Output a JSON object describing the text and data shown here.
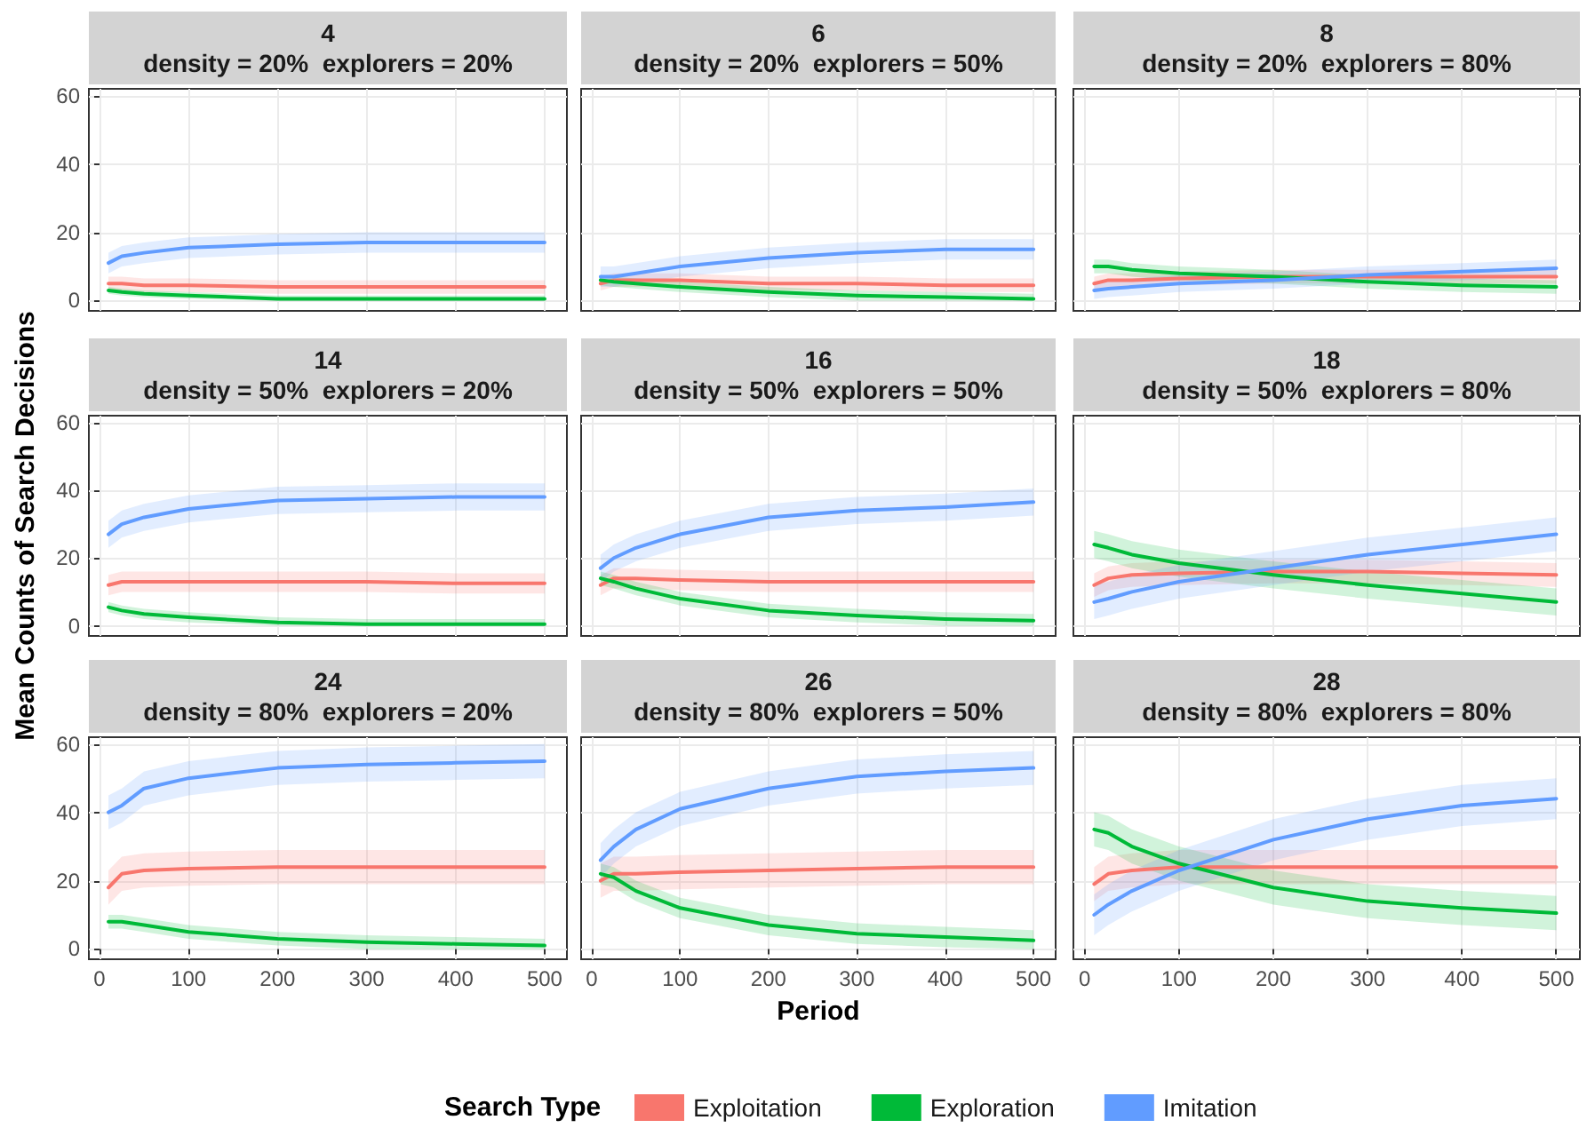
{
  "chart_data": [
    {
      "type": "line",
      "title": "4\ndensity = 20%  explorers = 20%",
      "legend_title": "Search Type",
      "legend": "bottom",
      "x": [
        10,
        25,
        50,
        100,
        200,
        300,
        400,
        500
      ],
      "xlim": [
        -12,
        525
      ],
      "xticks": [
        0,
        100,
        200,
        300,
        400,
        500
      ],
      "ylim": [
        -3,
        62
      ],
      "yticks": [
        0,
        20,
        40,
        60
      ],
      "grid": true,
      "tick_labels": "y",
      "series": [
        {
          "name": "Exploitation",
          "color": "#f8766d",
          "values": [
            5,
            5,
            4.5,
            4.5,
            4,
            4,
            4,
            4
          ],
          "lower": [
            3,
            3,
            2.5,
            2.5,
            2,
            2,
            2,
            2
          ],
          "upper": [
            7,
            7,
            6.5,
            6.5,
            6,
            6,
            6,
            6
          ]
        },
        {
          "name": "Exploration",
          "color": "#00ba38",
          "values": [
            3,
            2.5,
            2,
            1.5,
            0.5,
            0.5,
            0.5,
            0.5
          ],
          "lower": [
            2,
            1.5,
            1,
            0.5,
            0,
            0,
            0,
            0
          ],
          "upper": [
            4,
            3.5,
            3,
            2.5,
            1.5,
            1.5,
            1.5,
            1.5
          ]
        },
        {
          "name": "Imitation",
          "color": "#619cff",
          "values": [
            11,
            13,
            14,
            15.5,
            16.5,
            17,
            17,
            17
          ],
          "lower": [
            8,
            10,
            11,
            12.5,
            13.5,
            14,
            14,
            14
          ],
          "upper": [
            14,
            16,
            17,
            18.5,
            19.5,
            20,
            20,
            20
          ]
        }
      ]
    },
    {
      "type": "line",
      "title": "6\ndensity = 20%  explorers = 50%",
      "x": [
        10,
        25,
        50,
        100,
        200,
        300,
        400,
        500
      ],
      "xlim": [
        -12,
        525
      ],
      "xticks": [
        0,
        100,
        200,
        300,
        400,
        500
      ],
      "ylim": [
        -3,
        62
      ],
      "yticks": [
        0,
        20,
        40,
        60
      ],
      "grid": true,
      "tick_labels": false,
      "series": [
        {
          "color": "#f8766d",
          "values": [
            5,
            6,
            6,
            6,
            5,
            5,
            4.5,
            4.5
          ],
          "lower": [
            3,
            4,
            4,
            4,
            3,
            3,
            2.5,
            2.5
          ],
          "upper": [
            7,
            8,
            8,
            8,
            7,
            7,
            6.5,
            6.5
          ]
        },
        {
          "color": "#00ba38",
          "values": [
            6,
            5.5,
            5,
            4,
            2.5,
            1.5,
            1,
            0.5
          ],
          "lower": [
            4.5,
            4,
            3.5,
            2.5,
            1,
            0,
            0,
            0
          ],
          "upper": [
            7.5,
            7,
            6.5,
            5.5,
            4,
            3,
            2.5,
            2
          ]
        },
        {
          "color": "#619cff",
          "values": [
            7,
            7,
            8,
            10,
            12.5,
            14,
            15,
            15
          ],
          "lower": [
            4,
            4,
            5,
            7,
            9.5,
            11,
            12,
            12
          ],
          "upper": [
            10,
            10,
            11,
            13,
            15.5,
            17,
            18,
            18
          ]
        }
      ]
    },
    {
      "type": "line",
      "title": "8\ndensity = 20%  explorers = 80%",
      "x": [
        10,
        25,
        50,
        100,
        200,
        300,
        400,
        500
      ],
      "xlim": [
        -12,
        525
      ],
      "xticks": [
        0,
        100,
        200,
        300,
        400,
        500
      ],
      "ylim": [
        -3,
        62
      ],
      "yticks": [
        0,
        20,
        40,
        60
      ],
      "grid": true,
      "tick_labels": false,
      "series": [
        {
          "color": "#f8766d",
          "values": [
            5,
            6,
            6,
            6.5,
            7,
            7,
            7,
            7
          ],
          "lower": [
            3,
            4,
            4,
            4.5,
            5,
            5,
            5,
            5
          ],
          "upper": [
            7,
            8,
            8,
            8.5,
            9,
            9,
            9,
            9
          ]
        },
        {
          "color": "#00ba38",
          "values": [
            10,
            10,
            9,
            8,
            7,
            5.5,
            4.5,
            4
          ],
          "lower": [
            8,
            8,
            7,
            6,
            5,
            3.5,
            2.5,
            2
          ],
          "upper": [
            12,
            12,
            11,
            10,
            9,
            7.5,
            6.5,
            6
          ]
        },
        {
          "color": "#619cff",
          "values": [
            3,
            3.5,
            4,
            5,
            6,
            7.5,
            8.5,
            9.5
          ],
          "lower": [
            0.5,
            1,
            1.5,
            2.5,
            3.5,
            5,
            6,
            7
          ],
          "upper": [
            5.5,
            6,
            6.5,
            7.5,
            8.5,
            10,
            11,
            12
          ]
        }
      ]
    },
    {
      "type": "line",
      "title": "14\ndensity = 50%  explorers = 20%",
      "ylabel": "Mean Counts of Search Decisions",
      "x": [
        10,
        25,
        50,
        100,
        200,
        300,
        400,
        500
      ],
      "xlim": [
        -12,
        525
      ],
      "xticks": [
        0,
        100,
        200,
        300,
        400,
        500
      ],
      "ylim": [
        -3,
        62
      ],
      "yticks": [
        0,
        20,
        40,
        60
      ],
      "grid": true,
      "tick_labels": "y",
      "series": [
        {
          "color": "#f8766d",
          "values": [
            12,
            13,
            13,
            13,
            13,
            13,
            12.5,
            12.5
          ],
          "lower": [
            9,
            10,
            10,
            10,
            10,
            10,
            9.5,
            9.5
          ],
          "upper": [
            15,
            16,
            16,
            16,
            16,
            16,
            15.5,
            15.5
          ]
        },
        {
          "color": "#00ba38",
          "values": [
            5.5,
            4.5,
            3.5,
            2.5,
            1,
            0.5,
            0.5,
            0.5
          ],
          "lower": [
            4,
            3,
            2,
            1,
            0,
            0,
            0,
            0
          ],
          "upper": [
            7,
            6,
            5,
            4,
            2.5,
            2,
            2,
            2
          ]
        },
        {
          "color": "#619cff",
          "values": [
            27,
            30,
            32,
            34.5,
            37,
            37.5,
            38,
            38
          ],
          "lower": [
            23,
            26,
            28,
            30.5,
            33,
            33.5,
            34,
            34
          ],
          "upper": [
            31,
            34,
            36,
            38.5,
            41,
            41.5,
            42,
            42
          ]
        }
      ]
    },
    {
      "type": "line",
      "title": "16\ndensity = 50%  explorers = 50%",
      "x": [
        10,
        25,
        50,
        100,
        200,
        300,
        400,
        500
      ],
      "xlim": [
        -12,
        525
      ],
      "xticks": [
        0,
        100,
        200,
        300,
        400,
        500
      ],
      "ylim": [
        -3,
        62
      ],
      "yticks": [
        0,
        20,
        40,
        60
      ],
      "grid": true,
      "tick_labels": false,
      "series": [
        {
          "color": "#f8766d",
          "values": [
            12,
            14,
            14,
            13.5,
            13,
            13,
            13,
            13
          ],
          "lower": [
            9,
            11,
            11,
            10.5,
            10,
            10,
            10,
            10
          ],
          "upper": [
            15,
            17,
            17,
            16.5,
            16,
            16,
            16,
            16
          ]
        },
        {
          "color": "#00ba38",
          "values": [
            14,
            13,
            11,
            8,
            4.5,
            3,
            2,
            1.5
          ],
          "lower": [
            12,
            11,
            9,
            6,
            2.5,
            1,
            0,
            0
          ],
          "upper": [
            16,
            15,
            13,
            10,
            6.5,
            5,
            4,
            3.5
          ]
        },
        {
          "color": "#619cff",
          "values": [
            17,
            20,
            23,
            27,
            32,
            34,
            35,
            36.5
          ],
          "lower": [
            13,
            16,
            19,
            23,
            28,
            30,
            31,
            32.5
          ],
          "upper": [
            21,
            24,
            27,
            31,
            36,
            38,
            39,
            40.5
          ]
        }
      ]
    },
    {
      "type": "line",
      "title": "18\ndensity = 50%  explorers = 80%",
      "x": [
        10,
        25,
        50,
        100,
        200,
        300,
        400,
        500
      ],
      "xlim": [
        -12,
        525
      ],
      "xticks": [
        0,
        100,
        200,
        300,
        400,
        500
      ],
      "ylim": [
        -3,
        62
      ],
      "yticks": [
        0,
        20,
        40,
        60
      ],
      "grid": true,
      "tick_labels": false,
      "series": [
        {
          "color": "#f8766d",
          "values": [
            12,
            14,
            15,
            15.5,
            16,
            16,
            15.5,
            15
          ],
          "lower": [
            8.5,
            10.5,
            11.5,
            12,
            12.5,
            12.5,
            12,
            11.5
          ],
          "upper": [
            15.5,
            17.5,
            18.5,
            19,
            19.5,
            19.5,
            19,
            18.5
          ]
        },
        {
          "color": "#00ba38",
          "values": [
            24,
            23,
            21,
            18.5,
            15,
            12,
            9.5,
            7
          ],
          "lower": [
            20,
            19,
            17,
            14.5,
            11,
            8,
            5.5,
            3
          ],
          "upper": [
            28,
            27,
            25,
            22.5,
            19,
            16,
            13.5,
            11
          ]
        },
        {
          "color": "#619cff",
          "values": [
            7,
            8,
            10,
            13,
            17,
            21,
            24,
            27
          ],
          "lower": [
            2,
            3,
            5,
            8,
            12,
            16,
            19,
            22
          ],
          "upper": [
            12,
            13,
            15,
            18,
            22,
            26,
            29,
            32
          ]
        }
      ]
    },
    {
      "type": "line",
      "title": "24\ndensity = 80%  explorers = 20%",
      "x": [
        10,
        25,
        50,
        100,
        200,
        300,
        400,
        500
      ],
      "xlim": [
        -12,
        525
      ],
      "xticks": [
        0,
        100,
        200,
        300,
        400,
        500
      ],
      "ylim": [
        -3,
        62
      ],
      "yticks": [
        0,
        20,
        40,
        60
      ],
      "grid": true,
      "series": [
        {
          "color": "#f8766d",
          "values": [
            18,
            22,
            23,
            23.5,
            24,
            24,
            24,
            24
          ],
          "lower": [
            13,
            17,
            18,
            18.5,
            19,
            19,
            19,
            19
          ],
          "upper": [
            23,
            27,
            28,
            28.5,
            29,
            29,
            29,
            29
          ]
        },
        {
          "color": "#00ba38",
          "values": [
            8,
            8,
            7,
            5,
            3,
            2,
            1.5,
            1
          ],
          "lower": [
            6,
            6,
            5,
            3,
            1,
            0,
            0,
            0
          ],
          "upper": [
            10,
            10,
            9,
            7,
            5,
            4,
            3.5,
            3
          ]
        },
        {
          "color": "#619cff",
          "values": [
            40,
            42,
            47,
            50,
            53,
            54,
            54.5,
            55
          ],
          "lower": [
            35,
            37,
            42,
            45,
            48,
            49,
            49.5,
            50
          ],
          "upper": [
            45,
            47,
            52,
            55,
            58,
            59,
            59.5,
            60
          ]
        }
      ]
    },
    {
      "type": "line",
      "title": "26\ndensity = 80%  explorers = 50%",
      "xlabel": "Period",
      "x": [
        10,
        25,
        50,
        100,
        200,
        300,
        400,
        500
      ],
      "xlim": [
        -12,
        525
      ],
      "xticks": [
        0,
        100,
        200,
        300,
        400,
        500
      ],
      "ylim": [
        -3,
        62
      ],
      "yticks": [
        0,
        20,
        40,
        60
      ],
      "grid": true,
      "tick_labels": "x",
      "series": [
        {
          "color": "#f8766d",
          "values": [
            20,
            22,
            22,
            22.5,
            23,
            23.5,
            24,
            24
          ],
          "lower": [
            15,
            17,
            17,
            17.5,
            18,
            18.5,
            19,
            19
          ],
          "upper": [
            25,
            27,
            27,
            27.5,
            28,
            28.5,
            29,
            29
          ]
        },
        {
          "color": "#00ba38",
          "values": [
            22,
            21,
            17,
            12,
            7,
            4.5,
            3.5,
            2.5
          ],
          "lower": [
            19,
            18,
            14,
            9,
            4,
            1.5,
            0.5,
            0
          ],
          "upper": [
            25,
            24,
            20,
            15,
            10,
            7.5,
            6.5,
            5.5
          ]
        },
        {
          "color": "#619cff",
          "values": [
            26,
            30,
            35,
            41,
            47,
            50.5,
            52,
            53
          ],
          "lower": [
            21,
            25,
            30,
            36,
            42,
            45.5,
            47,
            48
          ],
          "upper": [
            31,
            35,
            40,
            46,
            52,
            55.5,
            57,
            58
          ]
        }
      ]
    },
    {
      "type": "line",
      "title": "28\ndensity = 80%  explorers = 80%",
      "x": [
        10,
        25,
        50,
        100,
        200,
        300,
        400,
        500
      ],
      "xlim": [
        -12,
        525
      ],
      "xticks": [
        0,
        100,
        200,
        300,
        400,
        500
      ],
      "ylim": [
        -3,
        62
      ],
      "yticks": [
        0,
        20,
        40,
        60
      ],
      "grid": true,
      "tick_labels": "x",
      "series": [
        {
          "color": "#f8766d",
          "values": [
            19,
            22,
            23,
            24,
            24,
            24,
            24,
            24
          ],
          "lower": [
            14,
            17,
            18,
            19,
            19,
            19,
            19,
            19
          ],
          "upper": [
            24,
            27,
            28,
            29,
            29,
            29,
            29,
            29
          ]
        },
        {
          "color": "#00ba38",
          "values": [
            35,
            34,
            30,
            25,
            18,
            14,
            12,
            10.5
          ],
          "lower": [
            30,
            29,
            25,
            20,
            13,
            9,
            7,
            5.5
          ],
          "upper": [
            40,
            39,
            35,
            30,
            23,
            19,
            17,
            15.5
          ]
        },
        {
          "color": "#619cff",
          "values": [
            10,
            13,
            17,
            23,
            32,
            38,
            42,
            44
          ],
          "lower": [
            4,
            7,
            11,
            17,
            26,
            32,
            36,
            38
          ],
          "upper": [
            16,
            19,
            23,
            29,
            38,
            44,
            48,
            50
          ]
        }
      ]
    }
  ]
}
